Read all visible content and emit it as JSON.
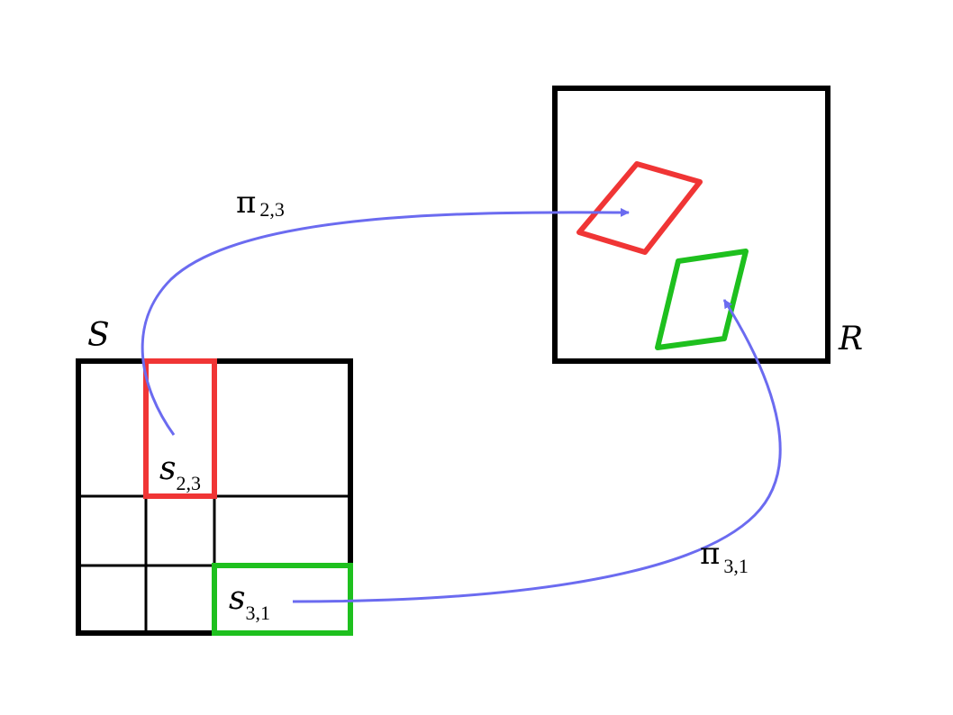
{
  "labels": {
    "S": "S",
    "R": "R",
    "s23": {
      "base": "s",
      "sub": "2,3"
    },
    "s31": {
      "base": "s",
      "sub": "3,1"
    },
    "pi23": {
      "base": "π",
      "sub": "2,3"
    },
    "pi31": {
      "base": "π",
      "sub": "3,1"
    }
  },
  "colors": {
    "frame": "#000000",
    "red": "#f03535",
    "green": "#1ec01e",
    "arrow": "#6b6bf0"
  }
}
